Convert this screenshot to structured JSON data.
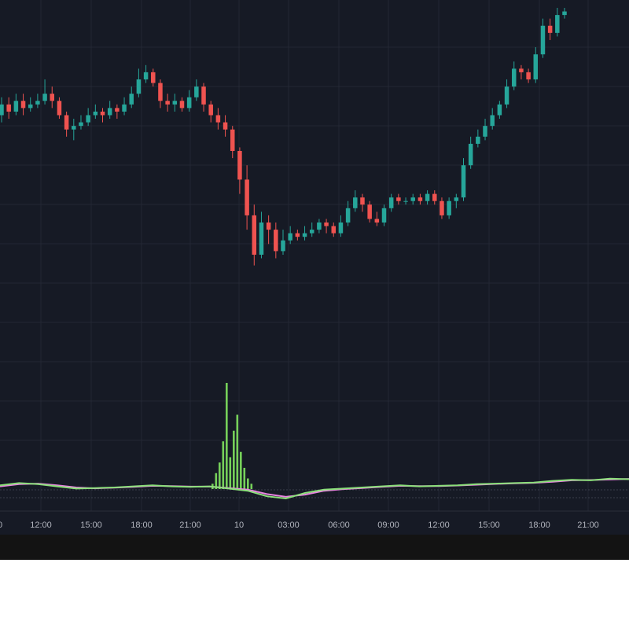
{
  "colors": {
    "background": "#161a25",
    "grid": "#232734",
    "up": "#26a69a",
    "down": "#ef5350",
    "volume": "#76d05a",
    "osc_fast": "#8be07a",
    "osc_slow": "#e884e0",
    "status_bar": "#131313"
  },
  "chart_data": [
    {
      "type": "candlestick",
      "title": "",
      "x_tick_labels": [
        "12:00",
        "15:00",
        "18:00",
        "21:00",
        "10",
        "03:00",
        "06:00",
        "09:00",
        "12:00",
        "15:00",
        "18:00",
        "21:00"
      ],
      "candles": [
        {
          "o": 0.7,
          "c": 0.73,
          "h": 0.75,
          "l": 0.68
        },
        {
          "o": 0.73,
          "c": 0.71,
          "h": 0.75,
          "l": 0.69
        },
        {
          "o": 0.71,
          "c": 0.74,
          "h": 0.76,
          "l": 0.7
        },
        {
          "o": 0.74,
          "c": 0.72,
          "h": 0.76,
          "l": 0.7
        },
        {
          "o": 0.72,
          "c": 0.73,
          "h": 0.75,
          "l": 0.71
        },
        {
          "o": 0.73,
          "c": 0.74,
          "h": 0.76,
          "l": 0.72
        },
        {
          "o": 0.74,
          "c": 0.76,
          "h": 0.8,
          "l": 0.73
        },
        {
          "o": 0.76,
          "c": 0.74,
          "h": 0.78,
          "l": 0.72
        },
        {
          "o": 0.74,
          "c": 0.7,
          "h": 0.75,
          "l": 0.69
        },
        {
          "o": 0.7,
          "c": 0.66,
          "h": 0.71,
          "l": 0.64
        },
        {
          "o": 0.66,
          "c": 0.67,
          "h": 0.69,
          "l": 0.63
        },
        {
          "o": 0.67,
          "c": 0.68,
          "h": 0.7,
          "l": 0.66
        },
        {
          "o": 0.68,
          "c": 0.7,
          "h": 0.72,
          "l": 0.67
        },
        {
          "o": 0.7,
          "c": 0.71,
          "h": 0.73,
          "l": 0.69
        },
        {
          "o": 0.71,
          "c": 0.7,
          "h": 0.72,
          "l": 0.68
        },
        {
          "o": 0.7,
          "c": 0.72,
          "h": 0.74,
          "l": 0.69
        },
        {
          "o": 0.72,
          "c": 0.71,
          "h": 0.73,
          "l": 0.69
        },
        {
          "o": 0.71,
          "c": 0.73,
          "h": 0.75,
          "l": 0.7
        },
        {
          "o": 0.73,
          "c": 0.76,
          "h": 0.78,
          "l": 0.72
        },
        {
          "o": 0.76,
          "c": 0.8,
          "h": 0.83,
          "l": 0.75
        },
        {
          "o": 0.8,
          "c": 0.82,
          "h": 0.84,
          "l": 0.79
        },
        {
          "o": 0.82,
          "c": 0.79,
          "h": 0.83,
          "l": 0.78
        },
        {
          "o": 0.79,
          "c": 0.74,
          "h": 0.8,
          "l": 0.72
        },
        {
          "o": 0.74,
          "c": 0.73,
          "h": 0.76,
          "l": 0.71
        },
        {
          "o": 0.73,
          "c": 0.74,
          "h": 0.76,
          "l": 0.71
        },
        {
          "o": 0.74,
          "c": 0.72,
          "h": 0.75,
          "l": 0.71
        },
        {
          "o": 0.72,
          "c": 0.75,
          "h": 0.77,
          "l": 0.71
        },
        {
          "o": 0.75,
          "c": 0.78,
          "h": 0.8,
          "l": 0.74
        },
        {
          "o": 0.78,
          "c": 0.73,
          "h": 0.79,
          "l": 0.71
        },
        {
          "o": 0.73,
          "c": 0.7,
          "h": 0.74,
          "l": 0.68
        },
        {
          "o": 0.7,
          "c": 0.68,
          "h": 0.72,
          "l": 0.66
        },
        {
          "o": 0.68,
          "c": 0.66,
          "h": 0.7,
          "l": 0.64
        },
        {
          "o": 0.66,
          "c": 0.6,
          "h": 0.67,
          "l": 0.58
        },
        {
          "o": 0.6,
          "c": 0.52,
          "h": 0.61,
          "l": 0.48
        },
        {
          "o": 0.52,
          "c": 0.42,
          "h": 0.56,
          "l": 0.38
        },
        {
          "o": 0.42,
          "c": 0.31,
          "h": 0.45,
          "l": 0.28
        },
        {
          "o": 0.31,
          "c": 0.4,
          "h": 0.43,
          "l": 0.3
        },
        {
          "o": 0.4,
          "c": 0.38,
          "h": 0.42,
          "l": 0.34
        },
        {
          "o": 0.38,
          "c": 0.32,
          "h": 0.4,
          "l": 0.3
        },
        {
          "o": 0.32,
          "c": 0.35,
          "h": 0.38,
          "l": 0.31
        },
        {
          "o": 0.35,
          "c": 0.37,
          "h": 0.39,
          "l": 0.34
        },
        {
          "o": 0.37,
          "c": 0.36,
          "h": 0.38,
          "l": 0.35
        },
        {
          "o": 0.36,
          "c": 0.37,
          "h": 0.39,
          "l": 0.35
        },
        {
          "o": 0.37,
          "c": 0.38,
          "h": 0.4,
          "l": 0.36
        },
        {
          "o": 0.38,
          "c": 0.4,
          "h": 0.41,
          "l": 0.37
        },
        {
          "o": 0.4,
          "c": 0.39,
          "h": 0.41,
          "l": 0.37
        },
        {
          "o": 0.39,
          "c": 0.37,
          "h": 0.4,
          "l": 0.36
        },
        {
          "o": 0.37,
          "c": 0.4,
          "h": 0.42,
          "l": 0.36
        },
        {
          "o": 0.4,
          "c": 0.44,
          "h": 0.46,
          "l": 0.39
        },
        {
          "o": 0.44,
          "c": 0.47,
          "h": 0.49,
          "l": 0.43
        },
        {
          "o": 0.47,
          "c": 0.45,
          "h": 0.48,
          "l": 0.43
        },
        {
          "o": 0.45,
          "c": 0.41,
          "h": 0.46,
          "l": 0.4
        },
        {
          "o": 0.41,
          "c": 0.4,
          "h": 0.43,
          "l": 0.39
        },
        {
          "o": 0.4,
          "c": 0.44,
          "h": 0.45,
          "l": 0.39
        },
        {
          "o": 0.44,
          "c": 0.47,
          "h": 0.48,
          "l": 0.43
        },
        {
          "o": 0.47,
          "c": 0.46,
          "h": 0.48,
          "l": 0.45
        },
        {
          "o": 0.46,
          "c": 0.46,
          "h": 0.47,
          "l": 0.45
        },
        {
          "o": 0.46,
          "c": 0.47,
          "h": 0.48,
          "l": 0.45
        },
        {
          "o": 0.47,
          "c": 0.46,
          "h": 0.48,
          "l": 0.45
        },
        {
          "o": 0.46,
          "c": 0.48,
          "h": 0.49,
          "l": 0.45
        },
        {
          "o": 0.48,
          "c": 0.46,
          "h": 0.49,
          "l": 0.45
        },
        {
          "o": 0.46,
          "c": 0.42,
          "h": 0.47,
          "l": 0.41
        },
        {
          "o": 0.42,
          "c": 0.46,
          "h": 0.47,
          "l": 0.41
        },
        {
          "o": 0.46,
          "c": 0.47,
          "h": 0.48,
          "l": 0.44
        },
        {
          "o": 0.47,
          "c": 0.56,
          "h": 0.58,
          "l": 0.46
        },
        {
          "o": 0.56,
          "c": 0.62,
          "h": 0.64,
          "l": 0.55
        },
        {
          "o": 0.62,
          "c": 0.64,
          "h": 0.66,
          "l": 0.61
        },
        {
          "o": 0.64,
          "c": 0.67,
          "h": 0.69,
          "l": 0.63
        },
        {
          "o": 0.67,
          "c": 0.7,
          "h": 0.72,
          "l": 0.66
        },
        {
          "o": 0.7,
          "c": 0.73,
          "h": 0.74,
          "l": 0.69
        },
        {
          "o": 0.73,
          "c": 0.78,
          "h": 0.8,
          "l": 0.72
        },
        {
          "o": 0.78,
          "c": 0.83,
          "h": 0.85,
          "l": 0.77
        },
        {
          "o": 0.83,
          "c": 0.82,
          "h": 0.84,
          "l": 0.8
        },
        {
          "o": 0.82,
          "c": 0.8,
          "h": 0.83,
          "l": 0.79
        },
        {
          "o": 0.8,
          "c": 0.87,
          "h": 0.89,
          "l": 0.79
        },
        {
          "o": 0.87,
          "c": 0.95,
          "h": 0.97,
          "l": 0.86
        },
        {
          "o": 0.95,
          "c": 0.93,
          "h": 0.97,
          "l": 0.91
        },
        {
          "o": 0.93,
          "c": 0.98,
          "h": 1.0,
          "l": 0.92
        },
        {
          "o": 0.98,
          "c": 0.99,
          "h": 1.0,
          "l": 0.97
        }
      ]
    },
    {
      "type": "bar",
      "title": "",
      "series": [
        {
          "values": [
            0.05,
            0.15,
            0.25,
            0.45,
            1.0,
            0.3,
            0.55,
            0.7,
            0.35,
            0.2,
            0.1,
            0.05
          ]
        }
      ]
    },
    {
      "type": "line",
      "title": "",
      "series": [
        {
          "values": [
            0.2,
            0.4,
            0.3,
            0.1,
            -0.1,
            -0.05,
            0.0,
            0.1,
            0.2,
            0.1,
            0.05,
            0.1,
            -0.1,
            -0.3,
            -0.8,
            -1.0,
            -0.5,
            -0.2,
            -0.1,
            0.0,
            0.1,
            0.2,
            0.1,
            0.15,
            0.2,
            0.3,
            0.35,
            0.4,
            0.45,
            0.6,
            0.7,
            0.65,
            0.8,
            0.75
          ]
        },
        {
          "values": [
            0.1,
            0.3,
            0.35,
            0.2,
            0.0,
            -0.08,
            -0.02,
            0.05,
            0.15,
            0.12,
            0.08,
            0.08,
            -0.05,
            -0.2,
            -0.6,
            -0.85,
            -0.65,
            -0.3,
            -0.15,
            -0.05,
            0.05,
            0.15,
            0.12,
            0.12,
            0.18,
            0.25,
            0.32,
            0.38,
            0.42,
            0.52,
            0.65,
            0.68,
            0.72,
            0.78
          ]
        }
      ]
    }
  ]
}
